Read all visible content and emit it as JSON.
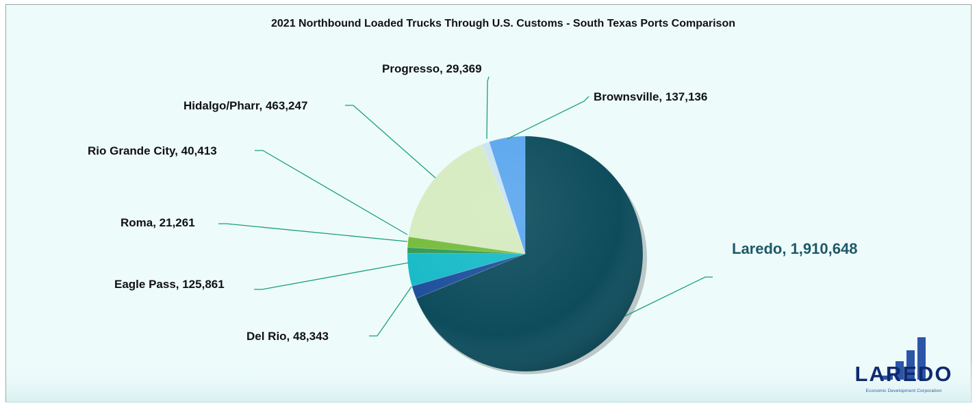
{
  "chart_data": {
    "type": "pie",
    "title": "2021 Northbound Loaded Trucks Through U.S. Customs - South Texas Ports Comparison",
    "slices": [
      {
        "name": "Laredo",
        "value": 1910648,
        "label": "Laredo,  1,910,648",
        "color": "#0d4c5c"
      },
      {
        "name": "Del Rio",
        "value": 48343,
        "label": "Del Rio,  48,343",
        "color": "#1f4f9c"
      },
      {
        "name": "Eagle Pass",
        "value": 125861,
        "label": "Eagle Pass,  125,861",
        "color": "#17bac8"
      },
      {
        "name": "Roma",
        "value": 21261,
        "label": "Roma,  21,261",
        "color": "#2f9a55"
      },
      {
        "name": "Rio Grande City",
        "value": 40413,
        "label": "Rio Grande City,  40,413",
        "color": "#74bb3c"
      },
      {
        "name": "Hidalgo/Pharr",
        "value": 463247,
        "label": "Hidalgo/Pharr,  463,247",
        "color": "#d5ebbf"
      },
      {
        "name": "Progresso",
        "value": 29369,
        "label": "Progresso,  29,369",
        "color": "#c9e4f2"
      },
      {
        "name": "Brownsville",
        "value": 137136,
        "label": "Brownsville,  137,136",
        "color": "#5aa6ee"
      }
    ],
    "highlight_label_color": "#1d5868"
  },
  "logo": {
    "word": "LAREDO",
    "tagline": "Economic Development Corporation"
  }
}
